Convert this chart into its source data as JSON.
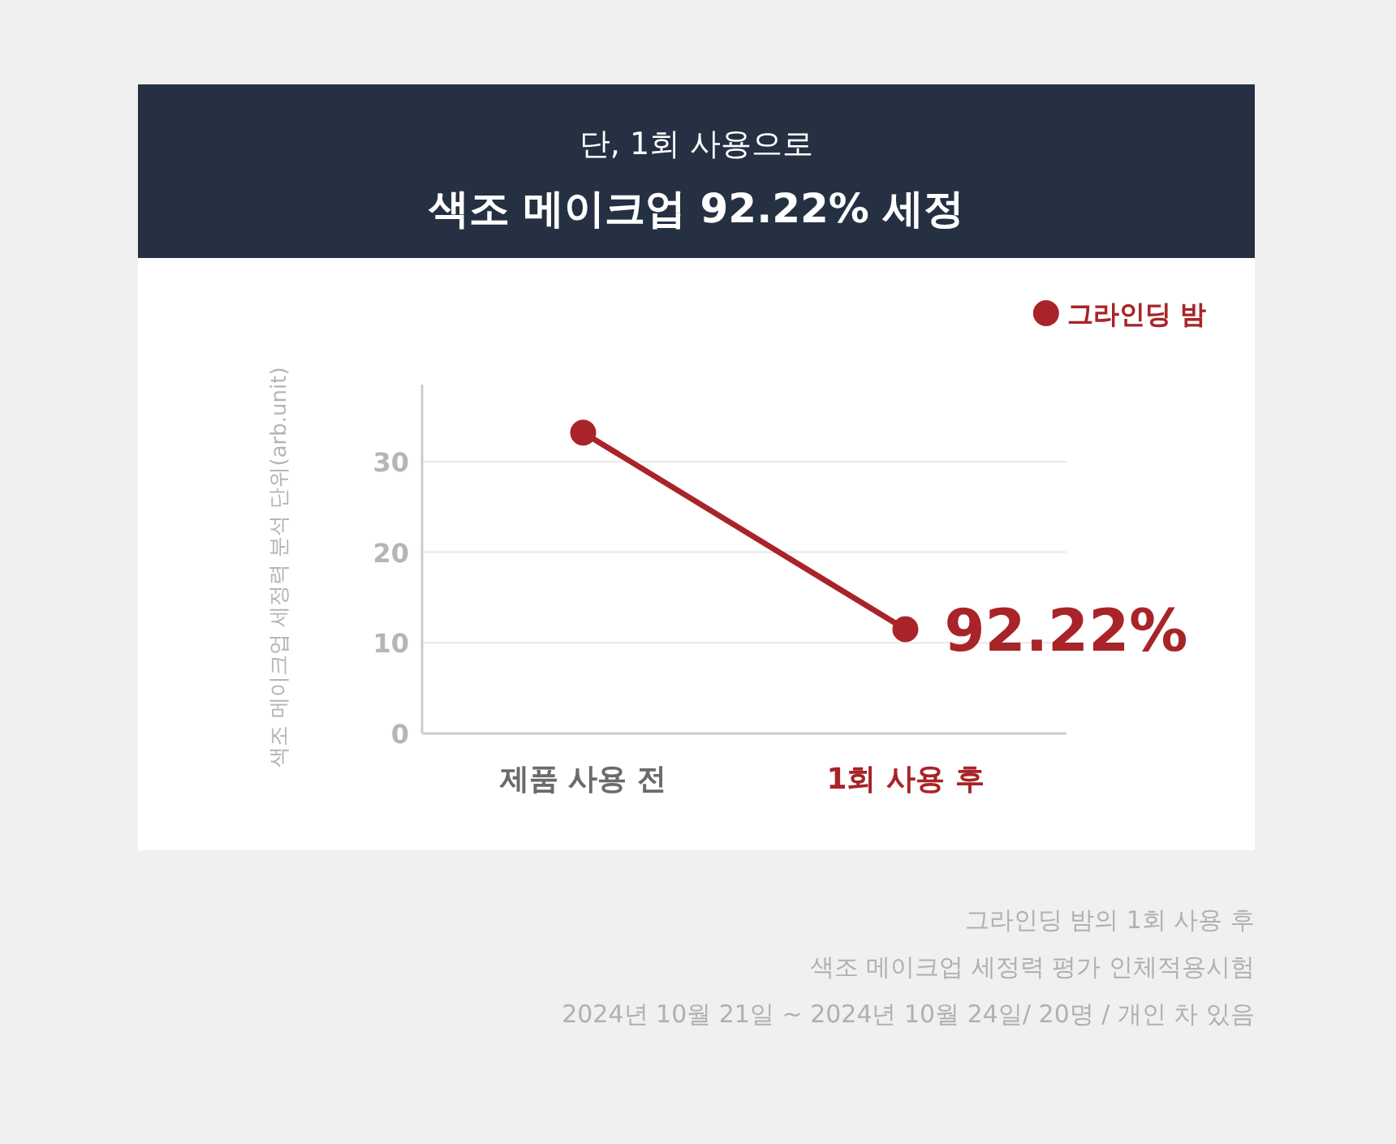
{
  "chart_data": {
    "type": "line",
    "title": "단, 1회 사용으로",
    "subtitle": "색조 메이크업 92.22% 세정",
    "ylabel": "색조 메이크업 세정력 분석 단위(arb.unit)",
    "categories": [
      "제품 사용 전",
      "1회 사용 후"
    ],
    "series": [
      {
        "name": "그라인딩 밤",
        "color": "#a82428",
        "values": [
          33.2,
          11.5
        ]
      }
    ],
    "ylim": [
      0,
      38.5
    ],
    "yticks": [
      0,
      10,
      20,
      30
    ],
    "grid": "y",
    "legend": "top right",
    "marker": "circle",
    "line_style": "solid",
    "annotations": [
      {
        "text": "92.22%",
        "x": "1회 사용 후",
        "y": 11.5
      },
      "그라인딩 밤의 1회 사용 후",
      "색조 메이크업 세정력 평가 인체적용시험",
      "2024년 10월 21일 ~ 2024년 10월 24일/ 20명 / 개인 차 있음"
    ]
  }
}
